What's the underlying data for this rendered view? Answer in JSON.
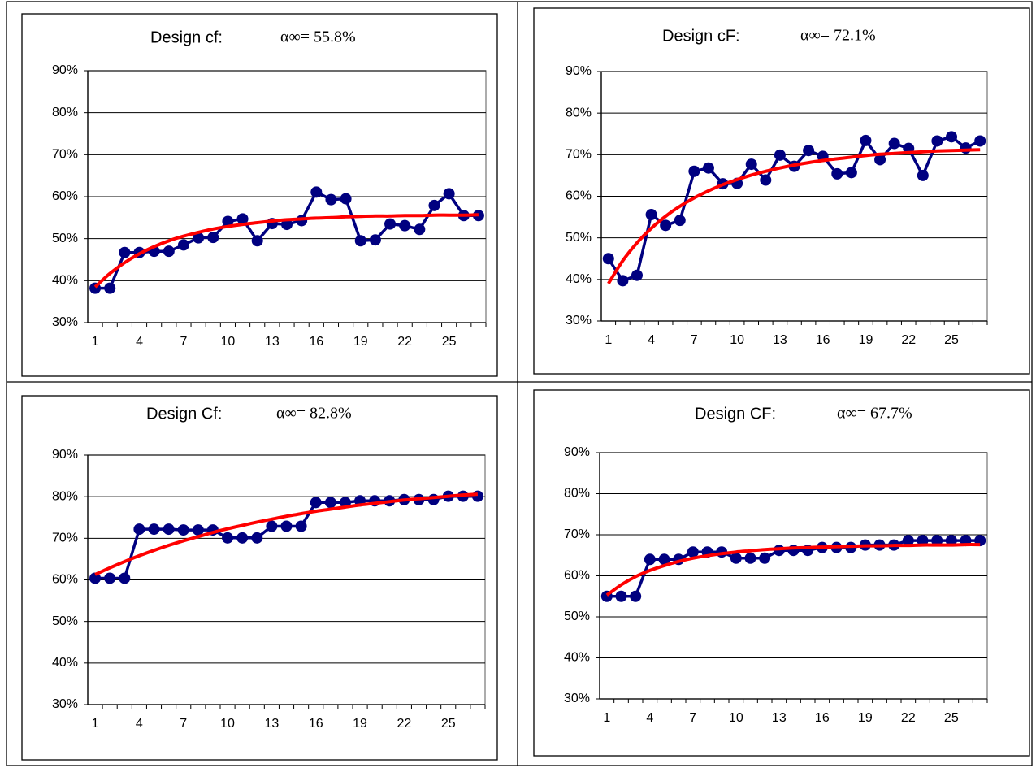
{
  "chart_data": [
    {
      "type": "line",
      "title": "Design cf:",
      "annotation": "α∞= 55.8%",
      "categories": [
        "1",
        null,
        null,
        "4",
        null,
        null,
        "7",
        null,
        null,
        "10",
        null,
        null,
        "13",
        null,
        null,
        "16",
        null,
        null,
        "19",
        null,
        null,
        "22",
        null,
        null,
        "25",
        null,
        null
      ],
      "ylim": [
        30,
        90
      ],
      "yticks": [
        {
          "value": 30,
          "label": "30%"
        },
        {
          "value": 40,
          "label": "40%"
        },
        {
          "value": 50,
          "label": "50%"
        },
        {
          "value": 60,
          "label": "60%"
        },
        {
          "value": 70,
          "label": "70%"
        },
        {
          "value": 80,
          "label": "80%"
        },
        {
          "value": 90,
          "label": "90%"
        }
      ],
      "grid": true,
      "series": [
        {
          "color": "#000080",
          "markers": true,
          "values": [
            38.2,
            38.2,
            46.7,
            46.7,
            47,
            47,
            48.5,
            50.2,
            50.3,
            54.1,
            54.7,
            49.5,
            53.6,
            53.4,
            54.3,
            61.1,
            59.3,
            59.5,
            49.5,
            49.7,
            53.5,
            53.1,
            52.2,
            57.9,
            60.7,
            55.5,
            55.5
          ]
        },
        {
          "color": "#ff0000",
          "markers": false,
          "values": [
            38.5,
            41.7,
            44.3,
            46.4,
            48.1,
            49.5,
            50.6,
            51.5,
            52.3,
            52.9,
            53.4,
            53.8,
            54.2,
            54.5,
            54.7,
            54.9,
            55.0,
            55.2,
            55.3,
            55.4,
            55.4,
            55.5,
            55.5,
            55.6,
            55.6,
            55.6,
            55.7
          ]
        }
      ]
    },
    {
      "type": "line",
      "title": "Design cF:",
      "annotation": "α∞= 72.1%",
      "categories": [
        "1",
        null,
        null,
        "4",
        null,
        null,
        "7",
        null,
        null,
        "10",
        null,
        null,
        "13",
        null,
        null,
        "16",
        null,
        null,
        "19",
        null,
        null,
        "22",
        null,
        null,
        "25",
        null,
        null
      ],
      "ylim": [
        30,
        90
      ],
      "yticks": [
        {
          "value": 30,
          "label": "30%"
        },
        {
          "value": 40,
          "label": "40%"
        },
        {
          "value": 50,
          "label": "50%"
        },
        {
          "value": 60,
          "label": "60%"
        },
        {
          "value": 70,
          "label": "70%"
        },
        {
          "value": 80,
          "label": "80%"
        },
        {
          "value": 90,
          "label": "90%"
        }
      ],
      "grid": true,
      "series": [
        {
          "color": "#000080",
          "markers": true,
          "values": [
            45,
            39.7,
            41,
            55.6,
            53,
            54.2,
            66,
            66.8,
            63,
            63.1,
            67.7,
            63.9,
            69.9,
            67.2,
            71,
            69.6,
            65.4,
            65.7,
            73.4,
            68.8,
            72.7,
            71.5,
            65,
            73.3,
            74.3,
            71.6,
            73.3
          ]
        },
        {
          "color": "#ff0000",
          "markers": false,
          "values": [
            39,
            44.5,
            48.8,
            52.3,
            55.2,
            57.6,
            59.6,
            61.3,
            62.8,
            64.0,
            65.1,
            66.0,
            66.8,
            67.5,
            68.1,
            68.6,
            69.0,
            69.4,
            69.8,
            70.1,
            70.3,
            70.5,
            70.7,
            70.9,
            71.0,
            71.1,
            71.2
          ]
        }
      ]
    },
    {
      "type": "line",
      "title": "Design Cf:",
      "annotation": "α∞= 82.8%",
      "categories": [
        "1",
        null,
        null,
        "4",
        null,
        null,
        "7",
        null,
        null,
        "10",
        null,
        null,
        "13",
        null,
        null,
        "16",
        null,
        null,
        "19",
        null,
        null,
        "22",
        null,
        null,
        "25",
        null,
        null
      ],
      "ylim": [
        30,
        90
      ],
      "yticks": [
        {
          "value": 30,
          "label": "30%"
        },
        {
          "value": 40,
          "label": "40%"
        },
        {
          "value": 50,
          "label": "50%"
        },
        {
          "value": 60,
          "label": "60%"
        },
        {
          "value": 70,
          "label": "70%"
        },
        {
          "value": 80,
          "label": "80%"
        },
        {
          "value": 90,
          "label": "90%"
        }
      ],
      "grid": true,
      "series": [
        {
          "color": "#000080",
          "markers": true,
          "values": [
            60.4,
            60.4,
            60.4,
            72.2,
            72.2,
            72.2,
            72,
            72,
            72,
            70.1,
            70.1,
            70.1,
            72.9,
            72.9,
            72.9,
            78.6,
            78.6,
            78.6,
            79,
            79,
            79,
            79.3,
            79.3,
            79.3,
            80.1,
            80.1,
            80.1
          ]
        },
        {
          "color": "#ff0000",
          "markers": false,
          "values": [
            61.3,
            62.9,
            64.4,
            65.8,
            67.1,
            68.3,
            69.4,
            70.4,
            71.4,
            72.3,
            73.1,
            73.9,
            74.6,
            75.3,
            75.9,
            76.5,
            77.0,
            77.5,
            78.0,
            78.4,
            78.8,
            79.2,
            79.5,
            79.8,
            80.1,
            80.4,
            80.6
          ]
        }
      ]
    },
    {
      "type": "line",
      "title": "Design CF:",
      "annotation": "α∞= 67.7%",
      "categories": [
        "1",
        null,
        null,
        "4",
        null,
        null,
        "7",
        null,
        null,
        "10",
        null,
        null,
        "13",
        null,
        null,
        "16",
        null,
        null,
        "19",
        null,
        null,
        "22",
        null,
        null,
        "25",
        null,
        null
      ],
      "ylim": [
        30,
        90
      ],
      "yticks": [
        {
          "value": 30,
          "label": "30%"
        },
        {
          "value": 40,
          "label": "40%"
        },
        {
          "value": 50,
          "label": "50%"
        },
        {
          "value": 60,
          "label": "60%"
        },
        {
          "value": 70,
          "label": "70%"
        },
        {
          "value": 80,
          "label": "80%"
        },
        {
          "value": 90,
          "label": "90%"
        }
      ],
      "grid": true,
      "series": [
        {
          "color": "#000080",
          "markers": true,
          "values": [
            55,
            55,
            55,
            64,
            64,
            64,
            65.8,
            65.8,
            65.8,
            64.3,
            64.3,
            64.3,
            66.2,
            66.2,
            66.2,
            66.9,
            66.9,
            66.9,
            67.5,
            67.5,
            67.5,
            68.6,
            68.6,
            68.6,
            68.6,
            68.6,
            68.6
          ]
        },
        {
          "color": "#ff0000",
          "markers": false,
          "values": [
            55.3,
            57.8,
            59.8,
            61.3,
            62.5,
            63.5,
            64.3,
            64.9,
            65.4,
            65.8,
            66.1,
            66.4,
            66.6,
            66.8,
            66.9,
            67.0,
            67.1,
            67.2,
            67.3,
            67.3,
            67.4,
            67.4,
            67.5,
            67.5,
            67.5,
            67.6,
            67.6
          ]
        }
      ]
    }
  ]
}
